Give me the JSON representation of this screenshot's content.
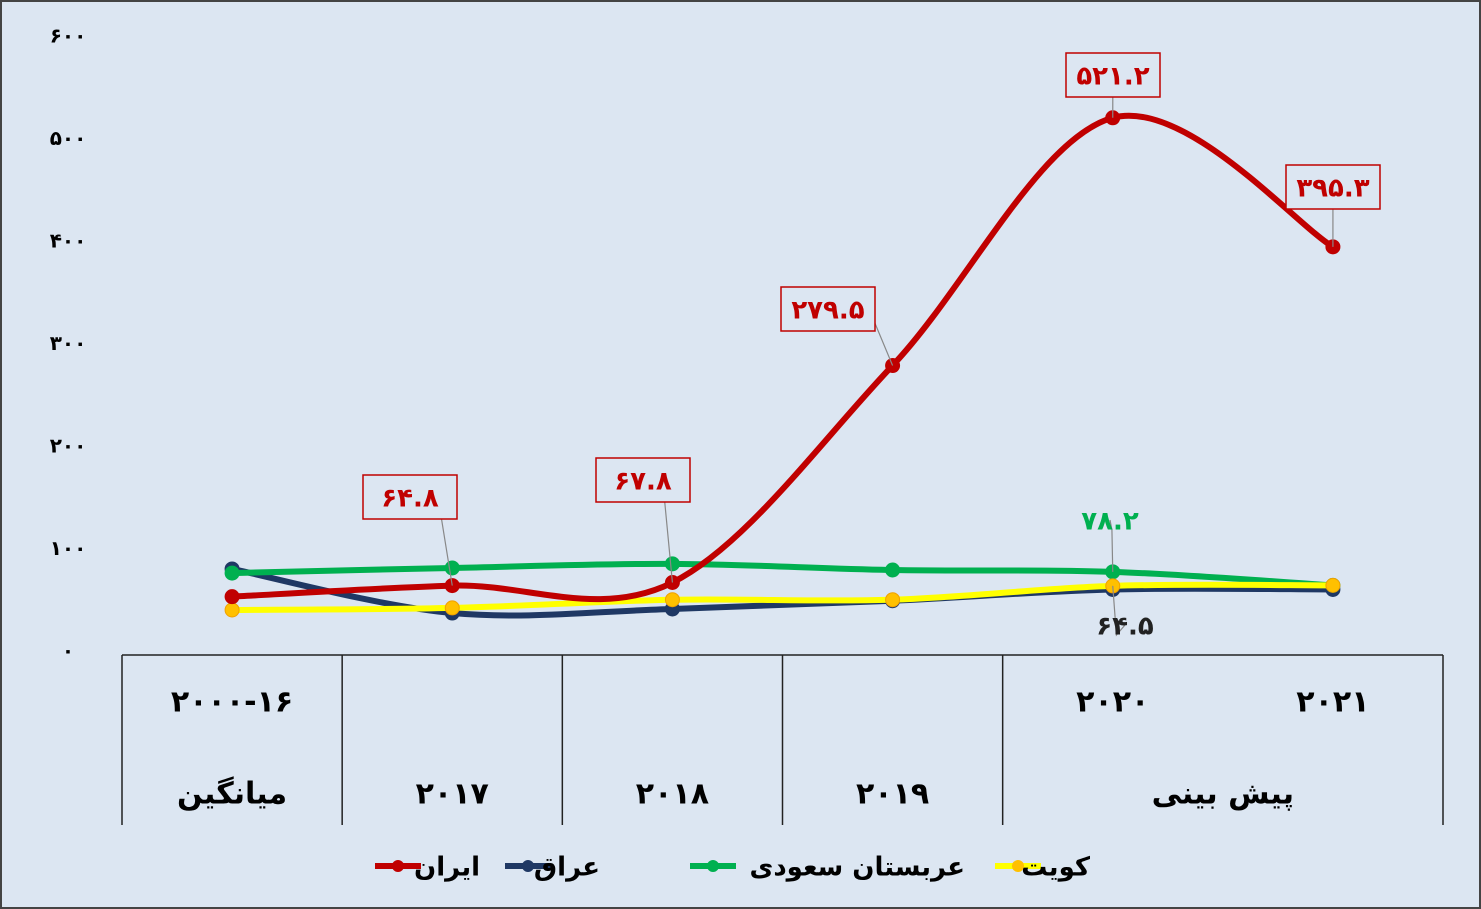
{
  "chart_data": {
    "type": "line",
    "categories": [
      "۲۰۰۰-۱۶",
      "۲۰۱۷",
      "۲۰۱۸",
      "۲۰۱۹",
      "۲۰۲۰",
      "۲۰۲۱"
    ],
    "category_groups": [
      {
        "label": "میانگین",
        "count": 1
      },
      {
        "label": null,
        "count": 1
      },
      {
        "label": null,
        "count": 1
      },
      {
        "label": null,
        "count": 1
      },
      {
        "label": "پیش بینی",
        "count": 2
      }
    ],
    "series": [
      {
        "name": "ایران",
        "color": "#c00000",
        "marker_color": "#c00000",
        "values": [
          54,
          64.8,
          67.8,
          279.5,
          521.2,
          395.3
        ],
        "value_labels": [
          null,
          "۶۴.۸",
          "۶۷.۸",
          "۲۷۹.۵",
          "۵۲۱.۲",
          "۳۹۵.۳"
        ]
      },
      {
        "name": "عراق",
        "color": "#1f3864",
        "marker_color": "#1f3864",
        "values": [
          81,
          38,
          42,
          50,
          61,
          61
        ]
      },
      {
        "name": "عربستان سعودی",
        "color": "#00b050",
        "marker_color": "#00b050",
        "values": [
          77,
          82,
          86,
          80,
          78.2,
          65
        ],
        "value_labels": [
          null,
          null,
          null,
          null,
          "۷۸.۲",
          null
        ]
      },
      {
        "name": "کویت",
        "color": "#ffff00",
        "marker_color": "#ffc000",
        "values": [
          41,
          43,
          51,
          51,
          64.5,
          65
        ],
        "value_labels": [
          null,
          null,
          null,
          null,
          "۶۴.۵",
          null
        ]
      }
    ],
    "ylim": [
      0,
      600
    ],
    "yticks": [
      {
        "value": 0,
        "label": "۰"
      },
      {
        "value": 100,
        "label": "۱۰۰"
      },
      {
        "value": 200,
        "label": "۲۰۰"
      },
      {
        "value": 300,
        "label": "۳۰۰"
      },
      {
        "value": 400,
        "label": "۴۰۰"
      },
      {
        "value": 500,
        "label": "۵۰۰"
      },
      {
        "value": 600,
        "label": "۶۰۰"
      }
    ],
    "grid": false,
    "legend": "bottom"
  }
}
